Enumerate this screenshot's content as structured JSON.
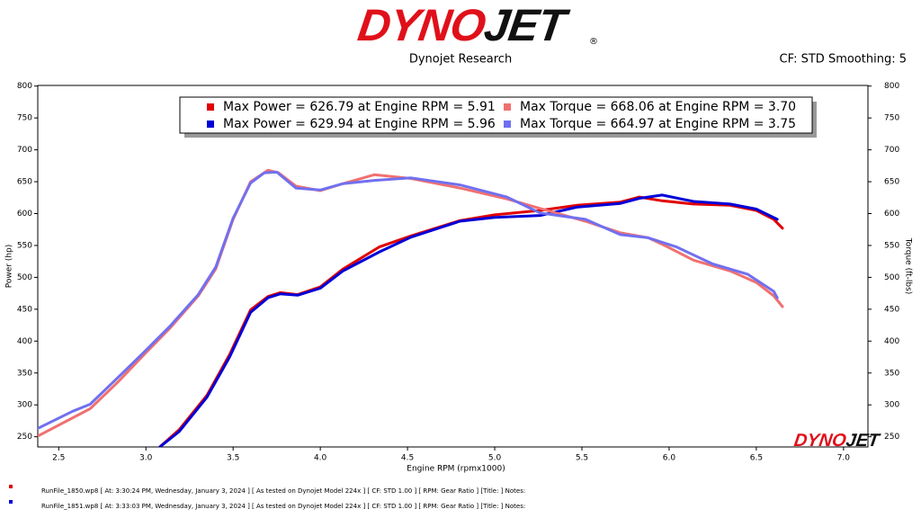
{
  "chart_data": {
    "type": "line",
    "logo": [
      "DYNO",
      "JET",
      "®"
    ],
    "subtitle": "Dynojet Research",
    "annotation": "CF: STD Smoothing: 5",
    "xlabel": "Engine RPM (rpmx1000)",
    "ylabel": "Power (hp)",
    "y2label": "Torque (ft-lbs)",
    "xlim": [
      2.38,
      7.14
    ],
    "ylim": [
      234,
      801
    ],
    "y2lim": [
      234,
      801
    ],
    "xticks": [
      2.5,
      {
        "value": 3,
        "label": "3.0"
      },
      3.5,
      {
        "value": 4,
        "label": "4.0"
      },
      4.5,
      {
        "value": 5,
        "label": "5.0"
      },
      5.5,
      {
        "value": 6,
        "label": "6.0"
      },
      6.5,
      {
        "value": 7,
        "label": "7.0"
      }
    ],
    "yticks": [
      250,
      300,
      350,
      400,
      450,
      500,
      550,
      600,
      650,
      700,
      750,
      800
    ],
    "y2ticks": [
      250,
      300,
      350,
      400,
      450,
      500,
      550,
      600,
      650,
      700,
      750,
      800
    ],
    "series": [
      {
        "name": "Max Power = 626.79 at Engine RPM = 5.91",
        "color": "#e00000",
        "axis": "y",
        "x": [
          3.08,
          3.19,
          3.35,
          3.48,
          3.6,
          3.7,
          3.77,
          3.87,
          4.0,
          4.13,
          4.34,
          4.52,
          4.8,
          5.0,
          5.26,
          5.47,
          5.72,
          5.83,
          5.96,
          6.14,
          6.35,
          6.5,
          6.6,
          6.65
        ],
        "values": [
          234,
          261,
          315,
          379,
          449,
          470,
          476,
          473,
          485,
          513,
          548,
          565,
          589,
          598,
          605,
          613,
          618,
          626,
          620,
          615,
          613,
          605,
          591,
          577
        ]
      },
      {
        "name": "Max Power = 629.94 at Engine RPM = 5.96",
        "color": "#0000d8",
        "axis": "y",
        "x": [
          3.08,
          3.19,
          3.35,
          3.48,
          3.6,
          3.7,
          3.77,
          3.87,
          4.0,
          4.13,
          4.34,
          4.52,
          4.8,
          5.0,
          5.26,
          5.47,
          5.72,
          5.83,
          5.96,
          6.14,
          6.35,
          6.5,
          6.62
        ],
        "values": [
          234,
          258,
          312,
          375,
          445,
          468,
          474,
          472,
          483,
          510,
          540,
          563,
          588,
          594,
          597,
          610,
          616,
          624,
          629,
          619,
          615,
          607,
          591
        ]
      },
      {
        "name": "Max Torque = 668.06 at Engine RPM = 3.70",
        "color": "#f07070",
        "axis": "y2",
        "x": [
          2.38,
          2.68,
          2.84,
          2.99,
          3.14,
          3.3,
          3.4,
          3.5,
          3.6,
          3.7,
          3.76,
          3.86,
          4.0,
          4.13,
          4.31,
          4.52,
          4.8,
          5.07,
          5.26,
          5.52,
          5.72,
          5.88,
          5.99,
          6.14,
          6.35,
          6.5,
          6.6,
          6.65
        ],
        "values": [
          251,
          294,
          336,
          379,
          421,
          471,
          513,
          591,
          650,
          668,
          664,
          643,
          636,
          647,
          661,
          655,
          640,
          623,
          608,
          588,
          570,
          562,
          548,
          527,
          510,
          492,
          471,
          454
        ]
      },
      {
        "name": "Max Torque = 664.97 at Engine RPM = 3.75",
        "color": "#7070f0",
        "axis": "y2",
        "x": [
          2.38,
          2.58,
          2.68,
          2.84,
          2.99,
          3.14,
          3.3,
          3.4,
          3.5,
          3.6,
          3.68,
          3.75,
          3.86,
          4.0,
          4.13,
          4.31,
          4.52,
          4.8,
          5.07,
          5.26,
          5.52,
          5.72,
          5.88,
          6.04,
          6.25,
          6.45,
          6.6,
          6.62
        ],
        "values": [
          263,
          290,
          301,
          343,
          383,
          424,
          473,
          516,
          593,
          648,
          664,
          665,
          640,
          637,
          647,
          652,
          656,
          645,
          626,
          601,
          591,
          567,
          562,
          548,
          521,
          505,
          478,
          468
        ]
      }
    ],
    "runs": [
      {
        "color": "#e00000",
        "text": "RunFile_1850.wp8  [ At:  3:30:24 PM, Wednesday, January 3, 2024 ]  [ As tested on Dynojet Model 224x ]  [ CF: STD 1.00 ]  [ RPM: Gear Ratio ]  [Title:  ]   Notes:"
      },
      {
        "color": "#0000d8",
        "text": "RunFile_1851.wp8  [ At:  3:33:03 PM, Wednesday, January 3, 2024 ]  [ As tested on Dynojet Model 224x ]  [ CF: STD 1.00 ]  [ RPM: Gear Ratio ]  [Title:  ]   Notes:"
      }
    ]
  }
}
